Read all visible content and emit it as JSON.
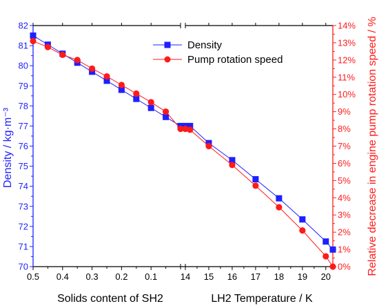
{
  "chart_data": {
    "type": "line",
    "colors": {
      "density": "#1f1fff",
      "pump": "#ff1a1a",
      "axis": "#000000"
    },
    "x_segments": [
      {
        "label": "Solids content of SH2",
        "range": [
          0.5,
          0
        ],
        "ticks": [
          "0.5",
          "0.4",
          "0.3",
          "0.2",
          "0.1"
        ],
        "tick_values": [
          0.5,
          0.4,
          0.3,
          0.2,
          0.1
        ]
      },
      {
        "label": "LH2 Temperature / K",
        "range": [
          14,
          20.3
        ],
        "ticks": [
          "14",
          "15",
          "16",
          "17",
          "18",
          "19",
          "20"
        ],
        "tick_values": [
          14,
          15,
          16,
          17,
          18,
          19,
          20
        ]
      }
    ],
    "y_left": {
      "label": "Density / kg·m⁻³",
      "range": [
        70,
        82
      ],
      "ticks": [
        "70",
        "71",
        "72",
        "73",
        "74",
        "75",
        "76",
        "77",
        "78",
        "79",
        "80",
        "81",
        "82"
      ]
    },
    "y_right": {
      "label": "Relative decrease in engine pump rotation speed / %",
      "range": [
        0,
        14
      ],
      "ticks": [
        "0%",
        "1%",
        "2%",
        "3%",
        "4%",
        "5%",
        "6%",
        "7%",
        "8%",
        "9%",
        "10%",
        "11%",
        "12%",
        "13%",
        "14%"
      ]
    },
    "series": [
      {
        "name": "Density",
        "axis": "left",
        "marker": "square",
        "color": "#1f1fff",
        "solids_content": [
          0.5,
          0.45,
          0.4,
          0.35,
          0.3,
          0.25,
          0.2,
          0.15,
          0.1,
          0.05,
          0.0
        ],
        "solids_values": [
          81.5,
          81.05,
          80.6,
          80.15,
          79.7,
          79.25,
          78.8,
          78.35,
          77.9,
          77.45,
          77.0
        ],
        "temperature": [
          14.0,
          14.2,
          15,
          16,
          17,
          18,
          19,
          20,
          20.3
        ],
        "temperature_values": [
          77.0,
          77.0,
          76.15,
          75.3,
          74.35,
          73.4,
          72.35,
          71.25,
          70.85
        ]
      },
      {
        "name": "Pump rotation speed",
        "axis": "right",
        "marker": "circle",
        "color": "#ff1a1a",
        "solids_content": [
          0.5,
          0.45,
          0.4,
          0.35,
          0.3,
          0.25,
          0.2,
          0.15,
          0.1,
          0.05,
          0.0
        ],
        "solids_values": [
          13.1,
          12.75,
          12.3,
          12.0,
          11.5,
          11.05,
          10.55,
          10.05,
          9.55,
          9.0,
          8.0
        ],
        "temperature": [
          14.0,
          14.2,
          15,
          16,
          17,
          18,
          19,
          20,
          20.3
        ],
        "temperature_values": [
          8.0,
          7.95,
          7.0,
          5.9,
          4.7,
          3.45,
          2.1,
          0.6,
          0.0
        ]
      }
    ],
    "legend": {
      "position": "top-center",
      "entries": [
        "Density",
        "Pump rotation speed"
      ]
    },
    "grid": false
  }
}
